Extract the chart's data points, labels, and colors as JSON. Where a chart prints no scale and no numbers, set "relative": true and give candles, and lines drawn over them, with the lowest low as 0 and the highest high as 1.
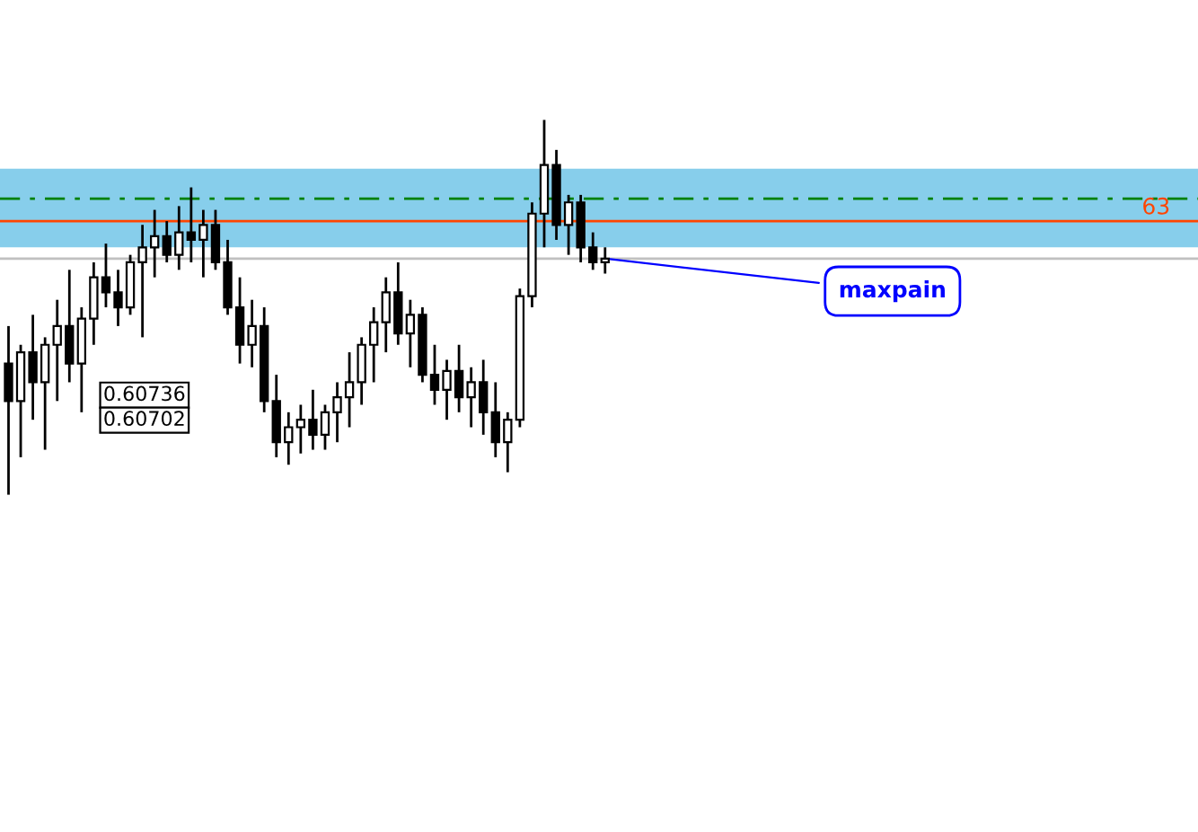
{
  "chart_data": {
    "type": "candlestick",
    "relative": true,
    "categories": [
      null,
      null,
      null,
      null,
      null,
      null,
      null,
      null,
      null,
      null,
      null,
      null,
      null,
      null,
      null,
      null,
      null,
      null,
      null,
      null,
      null,
      null,
      null,
      null,
      null,
      null,
      null,
      null,
      null,
      null,
      null,
      null,
      null,
      null,
      null,
      null,
      null,
      null,
      null,
      null,
      null,
      null,
      null,
      null,
      null,
      null,
      null,
      null,
      null,
      null,
      null,
      null,
      null,
      null,
      null,
      null,
      null,
      null,
      null,
      null,
      null,
      null,
      null,
      null,
      null,
      null,
      null,
      null,
      null,
      null,
      null,
      null,
      null,
      null,
      null,
      null,
      null,
      null,
      null,
      null,
      null,
      null,
      null,
      null,
      null,
      null,
      null,
      null,
      null,
      null,
      null,
      null,
      null,
      null,
      null,
      null,
      null,
      null
    ],
    "ohlc": [
      [
        0.35,
        0.45,
        0.0,
        0.25
      ],
      [
        0.25,
        0.4,
        0.1,
        0.38
      ],
      [
        0.38,
        0.48,
        0.2,
        0.3
      ],
      [
        0.3,
        0.42,
        0.12,
        0.4
      ],
      [
        0.4,
        0.52,
        0.25,
        0.45
      ],
      [
        0.45,
        0.6,
        0.3,
        0.35
      ],
      [
        0.35,
        0.5,
        0.22,
        0.47
      ],
      [
        0.47,
        0.62,
        0.4,
        0.58
      ],
      [
        0.58,
        0.67,
        0.5,
        0.54
      ],
      [
        0.54,
        0.6,
        0.45,
        0.5
      ],
      [
        0.5,
        0.64,
        0.48,
        0.62
      ],
      [
        0.62,
        0.72,
        0.42,
        0.66
      ],
      [
        0.66,
        0.76,
        0.58,
        0.69
      ],
      [
        0.69,
        0.73,
        0.62,
        0.64
      ],
      [
        0.64,
        0.77,
        0.6,
        0.7
      ],
      [
        0.7,
        0.82,
        0.62,
        0.68
      ],
      [
        0.68,
        0.76,
        0.58,
        0.72
      ],
      [
        0.72,
        0.76,
        0.6,
        0.62
      ],
      [
        0.62,
        0.68,
        0.48,
        0.5
      ],
      [
        0.5,
        0.58,
        0.35,
        0.4
      ],
      [
        0.4,
        0.52,
        0.34,
        0.45
      ],
      [
        0.45,
        0.5,
        0.22,
        0.25
      ],
      [
        0.25,
        0.32,
        0.1,
        0.14
      ],
      [
        0.14,
        0.22,
        0.08,
        0.18
      ],
      [
        0.18,
        0.24,
        0.11,
        0.2
      ],
      [
        0.2,
        0.28,
        0.12,
        0.16
      ],
      [
        0.16,
        0.24,
        0.12,
        0.22
      ],
      [
        0.22,
        0.3,
        0.14,
        0.26
      ],
      [
        0.26,
        0.38,
        0.18,
        0.3
      ],
      [
        0.3,
        0.42,
        0.24,
        0.4
      ],
      [
        0.4,
        0.5,
        0.3,
        0.46
      ],
      [
        0.46,
        0.58,
        0.38,
        0.54
      ],
      [
        0.54,
        0.62,
        0.4,
        0.43
      ],
      [
        0.43,
        0.52,
        0.34,
        0.48
      ],
      [
        0.48,
        0.5,
        0.3,
        0.32
      ],
      [
        0.32,
        0.4,
        0.24,
        0.28
      ],
      [
        0.28,
        0.36,
        0.2,
        0.33
      ],
      [
        0.33,
        0.4,
        0.22,
        0.26
      ],
      [
        0.26,
        0.34,
        0.18,
        0.3
      ],
      [
        0.3,
        0.36,
        0.16,
        0.22
      ],
      [
        0.22,
        0.3,
        0.1,
        0.14
      ],
      [
        0.14,
        0.22,
        0.06,
        0.2
      ],
      [
        0.2,
        0.55,
        0.18,
        0.53
      ],
      [
        0.53,
        0.78,
        0.5,
        0.75
      ],
      [
        0.75,
        1.0,
        0.66,
        0.88
      ],
      [
        0.88,
        0.92,
        0.68,
        0.72
      ],
      [
        0.72,
        0.8,
        0.64,
        0.78
      ],
      [
        0.78,
        0.8,
        0.62,
        0.66
      ],
      [
        0.66,
        0.7,
        0.6,
        0.62
      ],
      [
        0.62,
        0.66,
        0.59,
        0.63
      ],
      null,
      null,
      null,
      null,
      null,
      null,
      null,
      null,
      null,
      null,
      null,
      null,
      null,
      null,
      null,
      null,
      null,
      null,
      null,
      null,
      null,
      null,
      null,
      null,
      null,
      null,
      null,
      null,
      null,
      null,
      null,
      null,
      null,
      null,
      null,
      null,
      null,
      null,
      null,
      null,
      null,
      null,
      null,
      null,
      null,
      null,
      null,
      null
    ],
    "ref_lines": [
      {
        "axis": "y",
        "value": 0.73,
        "color": "#ff4500",
        "line_style": "solid"
      },
      {
        "axis": "y",
        "value": 0.79,
        "color": "#008000",
        "line_style": "dashed"
      },
      {
        "axis": "y",
        "value": 0.63,
        "color": "#c0c0c0",
        "line_style": "solid"
      }
    ],
    "bands": [
      {
        "axis": "y",
        "from": 0.66,
        "to": 0.87,
        "color": "#87ceeb"
      }
    ],
    "annotations": [
      "0.60736",
      "0.60702",
      "maxpain",
      "63"
    ],
    "grid": false
  }
}
